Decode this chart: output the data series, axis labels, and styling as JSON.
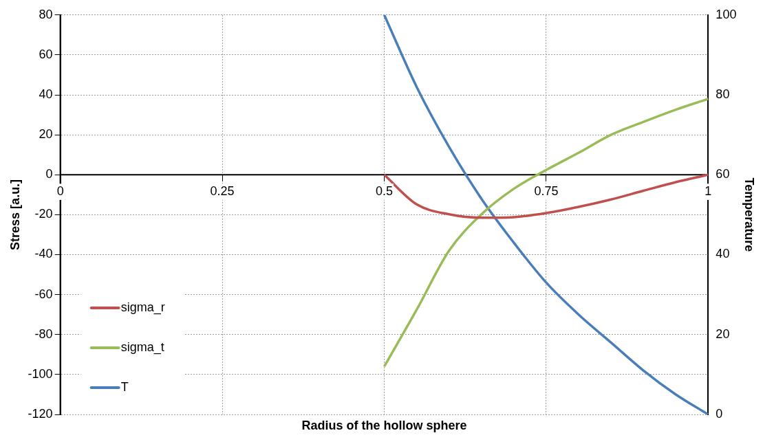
{
  "chart_data": {
    "type": "line",
    "xlabel": "Radius of the hollow sphere",
    "ylabel": "Stress [a.u.]",
    "y2label": "Temperature",
    "xlim": [
      0,
      1
    ],
    "xticks": [
      0,
      0.25,
      0.5,
      0.75,
      1
    ],
    "ylim": [
      -120,
      80
    ],
    "yticks": [
      -120,
      -100,
      -80,
      -60,
      -40,
      -20,
      0,
      20,
      40,
      60,
      80
    ],
    "y2lim": [
      0,
      100
    ],
    "y2ticks": [
      0,
      20,
      40,
      60,
      80,
      100
    ],
    "grid": true,
    "legend": "bottom left",
    "marker": "none",
    "line_style": "solid",
    "series": [
      {
        "name": "sigma_r",
        "color": "#c0504d",
        "x": [
          0.5,
          0.55,
          0.6,
          0.65,
          0.7,
          0.75,
          0.8,
          0.85,
          0.9,
          0.95,
          1
        ],
        "values": [
          0,
          -14.8,
          -19.8,
          -21.5,
          -21.2,
          -19.2,
          -16.1,
          -12.4,
          -8,
          -3.7,
          0
        ]
      },
      {
        "name": "sigma_t",
        "color": "#9bbb59",
        "x": [
          0.5,
          0.55,
          0.6,
          0.65,
          0.7,
          0.75,
          0.8,
          0.85,
          0.9,
          0.95,
          1
        ],
        "values": [
          -96,
          -67.6,
          -38,
          -19.8,
          -7,
          2.4,
          11,
          20,
          26.5,
          32.6,
          38
        ]
      },
      {
        "name": "T",
        "color": "#4a7ebb",
        "axis": "y2",
        "x": [
          0.5,
          0.55,
          0.6,
          0.65,
          0.7,
          0.75,
          0.8,
          0.85,
          0.9,
          0.95,
          1
        ],
        "values": [
          100,
          82,
          67,
          54,
          43,
          33,
          25,
          18,
          11,
          5,
          0
        ]
      }
    ]
  }
}
